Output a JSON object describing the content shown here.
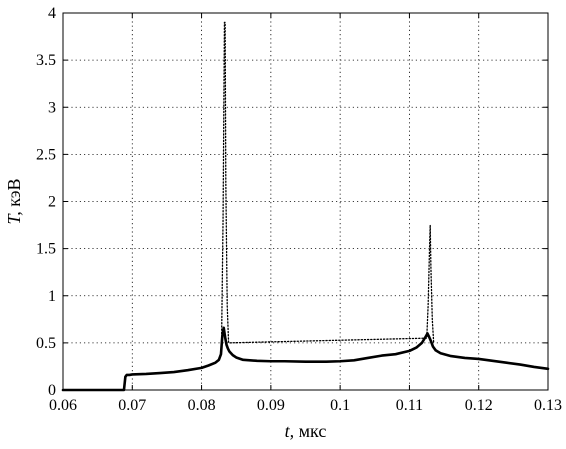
{
  "chart_data": {
    "type": "line",
    "title": "",
    "xlabel_var": "t,",
    "xlabel_unit": " мкс",
    "ylabel_var": "T,",
    "ylabel_unit": " кэВ",
    "xlim": [
      0.06,
      0.13
    ],
    "ylim": [
      0,
      4
    ],
    "grid": true,
    "legend": "none",
    "x_ticks": [
      {
        "value": 0.06,
        "label": "0.06"
      },
      {
        "value": 0.07,
        "label": "0.07"
      },
      {
        "value": 0.08,
        "label": "0.08"
      },
      {
        "value": 0.09,
        "label": "0.09"
      },
      {
        "value": 0.1,
        "label": "0.1"
      },
      {
        "value": 0.11,
        "label": "0.11"
      },
      {
        "value": 0.12,
        "label": "0.12"
      },
      {
        "value": 0.13,
        "label": "0.13"
      }
    ],
    "y_ticks": [
      {
        "value": 0,
        "label": "0"
      },
      {
        "value": 0.5,
        "label": "0.5"
      },
      {
        "value": 1,
        "label": "1"
      },
      {
        "value": 1.5,
        "label": "1.5"
      },
      {
        "value": 2,
        "label": "2"
      },
      {
        "value": 2.5,
        "label": "2.5"
      },
      {
        "value": 3,
        "label": "3"
      },
      {
        "value": 3.5,
        "label": "3.5"
      },
      {
        "value": 4,
        "label": "4"
      }
    ],
    "series": [
      {
        "style": "solid",
        "color": "#000000",
        "x": [
          0.06,
          0.0688,
          0.0689,
          0.069,
          0.0692,
          0.0696,
          0.07,
          0.072,
          0.074,
          0.076,
          0.078,
          0.08,
          0.081,
          0.082,
          0.0825,
          0.0828,
          0.083,
          0.0832,
          0.0834,
          0.0836,
          0.0838,
          0.084,
          0.0845,
          0.085,
          0.086,
          0.088,
          0.09,
          0.092,
          0.095,
          0.098,
          0.1,
          0.102,
          0.104,
          0.106,
          0.108,
          0.11,
          0.111,
          0.1118,
          0.1123,
          0.1126,
          0.1128,
          0.1131,
          0.1134,
          0.1138,
          0.1145,
          0.116,
          0.118,
          0.12,
          0.122,
          0.124,
          0.126,
          0.128,
          0.13
        ],
        "y": [
          0,
          0,
          0.07,
          0.14,
          0.16,
          0.16,
          0.165,
          0.17,
          0.18,
          0.19,
          0.21,
          0.235,
          0.26,
          0.29,
          0.32,
          0.38,
          0.58,
          0.66,
          0.56,
          0.48,
          0.44,
          0.41,
          0.37,
          0.345,
          0.32,
          0.31,
          0.305,
          0.305,
          0.3,
          0.3,
          0.305,
          0.315,
          0.34,
          0.365,
          0.38,
          0.415,
          0.45,
          0.5,
          0.56,
          0.6,
          0.57,
          0.52,
          0.46,
          0.42,
          0.39,
          0.36,
          0.34,
          0.33,
          0.31,
          0.29,
          0.27,
          0.245,
          0.225
        ]
      },
      {
        "style": "dotted",
        "color": "#000000",
        "x": [
          0.0829,
          0.0831,
          0.0833,
          0.0834,
          0.0835,
          0.0837,
          0.0839,
          0.1125,
          0.1127,
          0.1129,
          0.113,
          0.1131,
          0.1133,
          0.1135
        ],
        "y": [
          0.6,
          1.8,
          3.9,
          3.9,
          2.2,
          0.9,
          0.5,
          0.55,
          0.9,
          1.5,
          1.75,
          1.3,
          0.75,
          0.5
        ]
      }
    ]
  }
}
